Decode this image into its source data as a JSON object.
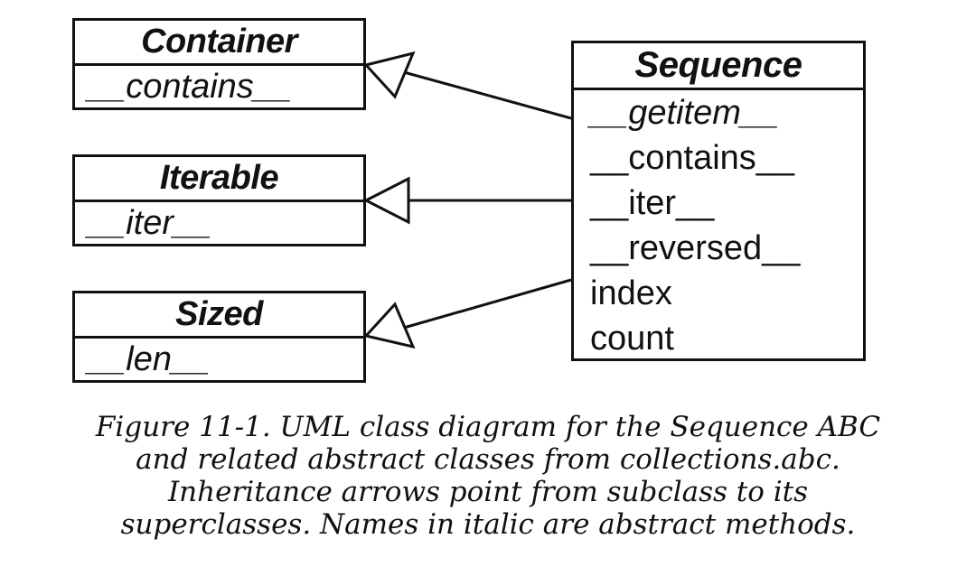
{
  "classes": {
    "container": {
      "name": "Container",
      "methods": [
        {
          "label": "__contains__",
          "abstract": true
        }
      ]
    },
    "iterable": {
      "name": "Iterable",
      "methods": [
        {
          "label": "__iter__",
          "abstract": true
        }
      ]
    },
    "sized": {
      "name": "Sized",
      "methods": [
        {
          "label": "__len__",
          "abstract": true
        }
      ]
    },
    "sequence": {
      "name": "Sequence",
      "methods": [
        {
          "label": "__getitem__",
          "abstract": true
        },
        {
          "label": "__contains__",
          "abstract": false
        },
        {
          "label": "__iter__",
          "abstract": false
        },
        {
          "label": "__reversed__",
          "abstract": false
        },
        {
          "label": "index",
          "abstract": false
        },
        {
          "label": "count",
          "abstract": false
        }
      ]
    }
  },
  "relations": [
    {
      "from": "sequence",
      "to": "container",
      "type": "inheritance"
    },
    {
      "from": "sequence",
      "to": "iterable",
      "type": "inheritance"
    },
    {
      "from": "sequence",
      "to": "sized",
      "type": "inheritance"
    }
  ],
  "caption": {
    "lines": [
      "Figure 11-1. UML class diagram for the Sequence ABC",
      "and related abstract classes from collections.abc.",
      "Inheritance arrows point from subclass to its",
      "superclasses. Names in italic are abstract methods."
    ]
  }
}
